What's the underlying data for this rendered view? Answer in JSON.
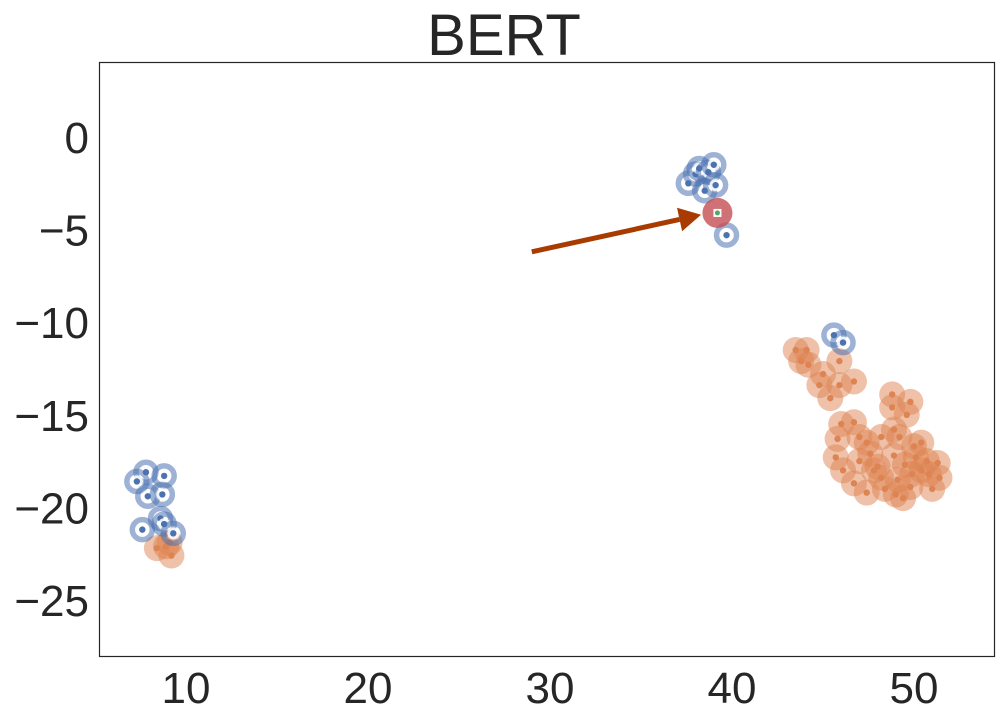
{
  "chart_data": {
    "type": "scatter",
    "title": "BERT",
    "xlabel": "",
    "ylabel": "",
    "xlim": [
      5.3,
      54.5
    ],
    "ylim": [
      -28.2,
      4.0
    ],
    "xticks": [
      10,
      20,
      30,
      40,
      50
    ],
    "yticks": [
      0,
      -5,
      -10,
      -15,
      -20,
      -25
    ],
    "grid": false,
    "legend": null,
    "colors": {
      "blue": "#4c72b0",
      "orange": "#dd8452",
      "red": "#c44e52",
      "arrow": "#a83c00"
    },
    "series": [
      {
        "name": "blue-ringed",
        "marker": "ring",
        "color": "#4c72b0",
        "points": [
          [
            7.8,
            -18.1
          ],
          [
            8.8,
            -18.3
          ],
          [
            7.3,
            -18.6
          ],
          [
            7.9,
            -19.4
          ],
          [
            8.7,
            -19.3
          ],
          [
            8.6,
            -20.6
          ],
          [
            8.8,
            -20.9
          ],
          [
            7.6,
            -21.2
          ],
          [
            9.3,
            -21.4
          ],
          [
            37.6,
            -2.5
          ],
          [
            38.0,
            -2.0
          ],
          [
            38.2,
            -1.7
          ],
          [
            38.7,
            -1.9
          ],
          [
            39.0,
            -1.5
          ],
          [
            38.5,
            -2.9
          ],
          [
            39.1,
            -2.6
          ],
          [
            39.7,
            -5.3
          ],
          [
            45.6,
            -10.7
          ],
          [
            46.1,
            -11.1
          ]
        ]
      },
      {
        "name": "orange-blobs",
        "marker": "blob",
        "color": "#dd8452",
        "points": [
          [
            8.4,
            -22.2
          ],
          [
            9.1,
            -21.9
          ],
          [
            9.2,
            -22.6
          ],
          [
            8.9,
            -22.1
          ],
          [
            43.5,
            -11.5
          ],
          [
            44.1,
            -11.5
          ],
          [
            43.8,
            -12.1
          ],
          [
            44.2,
            -12.3
          ],
          [
            45.0,
            -12.8
          ],
          [
            44.8,
            -13.4
          ],
          [
            45.9,
            -12.1
          ],
          [
            45.9,
            -13.4
          ],
          [
            46.7,
            -13.2
          ],
          [
            45.4,
            -14.1
          ],
          [
            46.0,
            -15.5
          ],
          [
            46.7,
            -15.4
          ],
          [
            45.8,
            -16.3
          ],
          [
            45.7,
            -17.3
          ],
          [
            47.0,
            -16.2
          ],
          [
            48.8,
            -13.9
          ],
          [
            48.8,
            -14.6
          ],
          [
            49.8,
            -14.3
          ],
          [
            49.6,
            -15.0
          ],
          [
            47.4,
            -16.5
          ],
          [
            47.6,
            -17.1
          ],
          [
            48.2,
            -16.2
          ],
          [
            48.9,
            -15.8
          ],
          [
            49.2,
            -16.2
          ],
          [
            50.0,
            -16.7
          ],
          [
            50.4,
            -16.5
          ],
          [
            50.7,
            -17.5
          ],
          [
            51.4,
            -18.4
          ],
          [
            51.0,
            -19.0
          ],
          [
            46.1,
            -18.0
          ],
          [
            46.7,
            -18.7
          ],
          [
            47.0,
            -17.5
          ],
          [
            47.8,
            -18.0
          ],
          [
            48.2,
            -18.4
          ],
          [
            48.9,
            -17.2
          ],
          [
            49.5,
            -17.7
          ],
          [
            49.9,
            -18.2
          ],
          [
            50.4,
            -18.0
          ],
          [
            47.4,
            -19.2
          ],
          [
            48.4,
            -19.0
          ],
          [
            49.0,
            -19.3
          ],
          [
            49.8,
            -18.9
          ],
          [
            50.8,
            -18.2
          ],
          [
            49.4,
            -19.5
          ],
          [
            48.0,
            -17.8
          ],
          [
            49.1,
            -18.5
          ],
          [
            50.1,
            -17.3
          ],
          [
            51.3,
            -17.6
          ]
        ]
      },
      {
        "name": "highlighted",
        "marker": "big-circle",
        "color": "#c44e52",
        "points": [
          [
            39.2,
            -4.1
          ]
        ]
      }
    ],
    "annotations": [
      {
        "type": "arrow",
        "from": [
          29.0,
          -6.2
        ],
        "to": [
          38.3,
          -4.2
        ],
        "color": "#a83c00"
      }
    ]
  }
}
